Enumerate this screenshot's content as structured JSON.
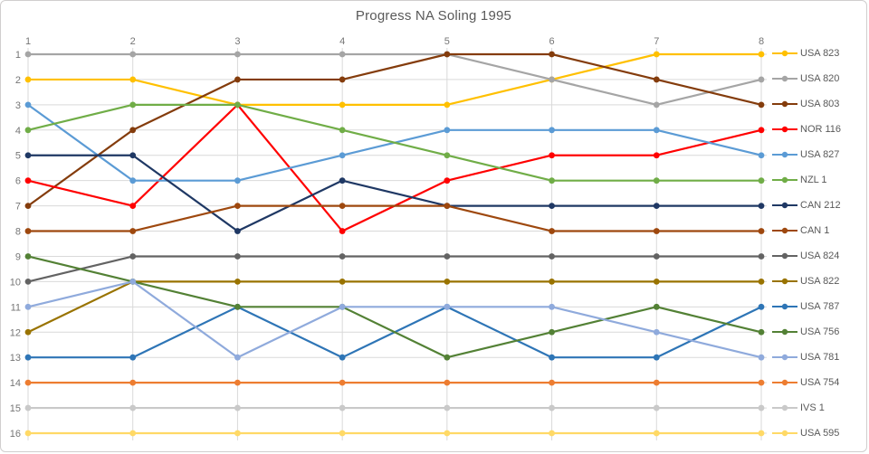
{
  "chart_data": {
    "type": "line",
    "title": "Progress NA Soling 1995",
    "x": [
      1,
      2,
      3,
      4,
      5,
      6,
      7,
      8
    ],
    "x_axis_position": "top",
    "y_ticks": [
      1,
      2,
      3,
      4,
      5,
      6,
      7,
      8,
      9,
      10,
      11,
      12,
      13,
      14,
      15,
      16
    ],
    "y_axis_reversed": true,
    "ylim": [
      1,
      16
    ],
    "grid": true,
    "legend_position": "right",
    "series": [
      {
        "name": "USA 823",
        "color": "#FFC000",
        "values": [
          2,
          2,
          3,
          3,
          3,
          2,
          1,
          1
        ]
      },
      {
        "name": "USA 820",
        "color": "#A5A5A5",
        "values": [
          1,
          1,
          1,
          1,
          1,
          2,
          3,
          2
        ]
      },
      {
        "name": "USA 803",
        "color": "#843C0C",
        "values": [
          7,
          4,
          2,
          2,
          1,
          1,
          2,
          3
        ]
      },
      {
        "name": "NOR 116",
        "color": "#FF0000",
        "values": [
          6,
          7,
          3,
          8,
          6,
          5,
          5,
          4
        ]
      },
      {
        "name": "USA 827",
        "color": "#5B9BD5",
        "values": [
          3,
          6,
          6,
          5,
          4,
          4,
          4,
          5
        ]
      },
      {
        "name": "NZL 1",
        "color": "#70AD47",
        "values": [
          4,
          3,
          3,
          4,
          5,
          6,
          6,
          6
        ]
      },
      {
        "name": "CAN 212",
        "color": "#1F3864",
        "values": [
          5,
          5,
          8,
          6,
          7,
          7,
          7,
          7
        ]
      },
      {
        "name": "CAN 1",
        "color": "#9E480E",
        "values": [
          8,
          8,
          7,
          7,
          7,
          8,
          8,
          8
        ]
      },
      {
        "name": "USA 824",
        "color": "#636363",
        "values": [
          10,
          9,
          9,
          9,
          9,
          9,
          9,
          9
        ]
      },
      {
        "name": "USA 822",
        "color": "#997300",
        "values": [
          12,
          10,
          10,
          10,
          10,
          10,
          10,
          10
        ]
      },
      {
        "name": "USA 787",
        "color": "#2E75B6",
        "values": [
          13,
          13,
          11,
          13,
          11,
          13,
          13,
          11
        ]
      },
      {
        "name": "USA 756",
        "color": "#538135",
        "values": [
          9,
          10,
          11,
          11,
          13,
          12,
          11,
          12
        ]
      },
      {
        "name": "USA 781",
        "color": "#8FAADC",
        "values": [
          11,
          10,
          13,
          11,
          11,
          11,
          12,
          13
        ]
      },
      {
        "name": "USA 754",
        "color": "#ED7D31",
        "values": [
          14,
          14,
          14,
          14,
          14,
          14,
          14,
          14
        ]
      },
      {
        "name": "IVS 1",
        "color": "#C9C9C9",
        "values": [
          15,
          15,
          15,
          15,
          15,
          15,
          15,
          15
        ]
      },
      {
        "name": "USA 595",
        "color": "#FFD966",
        "values": [
          16,
          16,
          16,
          16,
          16,
          16,
          16,
          16
        ]
      }
    ]
  },
  "styles": {
    "grid_color": "#D9D9D9",
    "axis_label_color": "#757575",
    "title_color": "#595959",
    "legend_text_color": "#595959",
    "background_color": "#FFFFFF",
    "border_color": "#D0CECE"
  }
}
